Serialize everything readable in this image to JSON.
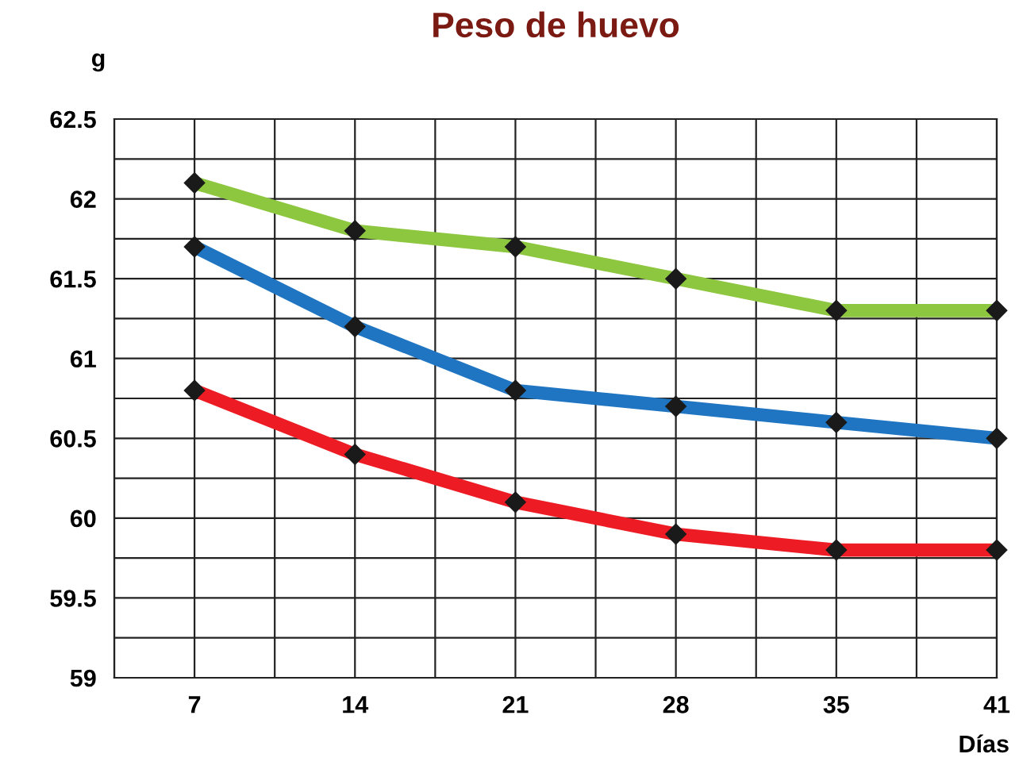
{
  "chart_data": {
    "type": "line",
    "title": "Peso de huevo",
    "ylabel": "g",
    "xlabel": "Días",
    "categories": [
      "7",
      "14",
      "21",
      "28",
      "35",
      "41"
    ],
    "series": [
      {
        "color": "#8dc63f",
        "values": [
          62.1,
          61.8,
          61.7,
          61.5,
          61.3,
          61.3
        ]
      },
      {
        "color": "#1f75c1",
        "values": [
          61.7,
          61.2,
          60.8,
          60.7,
          60.6,
          60.5
        ]
      },
      {
        "color": "#ed1c24",
        "values": [
          60.8,
          60.4,
          60.1,
          59.9,
          59.8,
          59.8
        ]
      }
    ],
    "ylim": [
      59,
      62.5
    ],
    "yticks": [
      59,
      59.5,
      60,
      60.5,
      61,
      61.5,
      62,
      62.5
    ],
    "grid": true,
    "marker": "diamond",
    "line_style": "solid",
    "legend": false
  }
}
